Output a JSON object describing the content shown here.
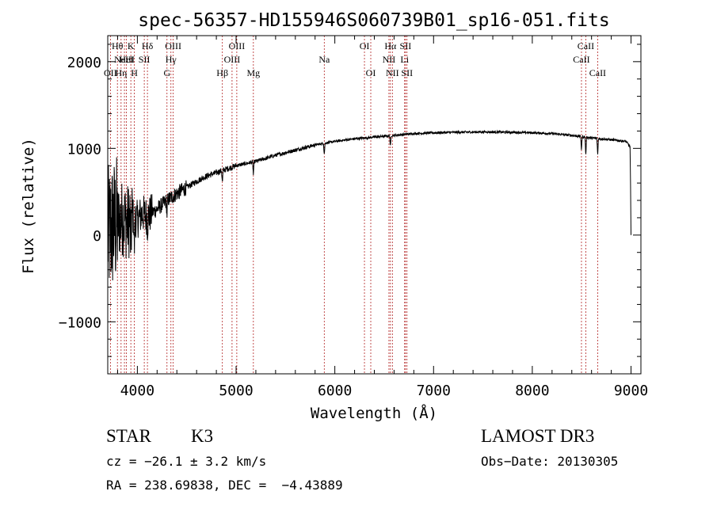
{
  "chart_data": {
    "type": "line",
    "title": "spec-56357-HD155946S060739B01_sp16-051.fits",
    "xlabel": "Wavelength (Å)",
    "ylabel": "Flux (relative)",
    "xlim": [
      3700,
      9100
    ],
    "ylim": [
      -1600,
      2300
    ],
    "xticks": [
      4000,
      5000,
      6000,
      7000,
      8000,
      9000
    ],
    "yticks": [
      -1000,
      0,
      1000,
      2000
    ],
    "grid": false,
    "spectrum_anchors": {
      "x": [
        3700,
        3750,
        3800,
        3850,
        3900,
        3950,
        4000,
        4050,
        4100,
        4200,
        4300,
        4400,
        4500,
        4600,
        4700,
        4800,
        4900,
        5000,
        5200,
        5400,
        5600,
        5800,
        6000,
        6200,
        6400,
        6600,
        6800,
        7000,
        7200,
        7500,
        7800,
        8000,
        8200,
        8400,
        8600,
        8800,
        8950,
        9000
      ],
      "y": [
        0,
        100,
        150,
        200,
        150,
        220,
        180,
        250,
        220,
        300,
        400,
        480,
        550,
        620,
        680,
        720,
        760,
        800,
        850,
        920,
        980,
        1040,
        1080,
        1110,
        1130,
        1150,
        1170,
        1180,
        1185,
        1190,
        1185,
        1180,
        1170,
        1150,
        1120,
        1100,
        1080,
        1000
      ]
    },
    "absorption_features": [
      {
        "x": 3934,
        "depth": 400
      },
      {
        "x": 3969,
        "depth": 380
      },
      {
        "x": 4102,
        "depth": 120
      },
      {
        "x": 4300,
        "depth": 160
      },
      {
        "x": 4861,
        "depth": 150
      },
      {
        "x": 5175,
        "depth": 150
      },
      {
        "x": 5893,
        "depth": 130
      },
      {
        "x": 6563,
        "depth": 130
      },
      {
        "x": 8498,
        "depth": 160
      },
      {
        "x": 8542,
        "depth": 220
      },
      {
        "x": 8662,
        "depth": 200
      }
    ],
    "line_markers": [
      {
        "x": 3727,
        "label": "OII",
        "row": 2
      },
      {
        "x": 3798,
        "label": "Hθ",
        "row": 0
      },
      {
        "x": 3835,
        "label": "Hη",
        "row": 2
      },
      {
        "x": 3869,
        "label": "NeIII",
        "row": 1
      },
      {
        "x": 3889,
        "label": "HeI",
        "row": 1
      },
      {
        "x": 3934,
        "label": "K",
        "row": 0
      },
      {
        "x": 3969,
        "label": "H",
        "row": 2
      },
      {
        "x": 4070,
        "label": "SII",
        "row": 1
      },
      {
        "x": 4102,
        "label": "Hδ",
        "row": 0
      },
      {
        "x": 4300,
        "label": "G",
        "row": 2
      },
      {
        "x": 4340,
        "label": "Hγ",
        "row": 1
      },
      {
        "x": 4363,
        "label": "OIII",
        "row": 0
      },
      {
        "x": 4861,
        "label": "Hβ",
        "row": 2
      },
      {
        "x": 4959,
        "label": "OIII",
        "row": 1
      },
      {
        "x": 5007,
        "label": "OIII",
        "row": 0
      },
      {
        "x": 5175,
        "label": "Mg",
        "row": 2
      },
      {
        "x": 5893,
        "label": "Na",
        "row": 1
      },
      {
        "x": 6300,
        "label": "OI",
        "row": 0
      },
      {
        "x": 6364,
        "label": "OI",
        "row": 2
      },
      {
        "x": 6548,
        "label": "NII",
        "row": 1
      },
      {
        "x": 6563,
        "label": "Hα",
        "row": 0
      },
      {
        "x": 6583,
        "label": "NII",
        "row": 2
      },
      {
        "x": 6707,
        "label": "Li",
        "row": 1
      },
      {
        "x": 6716,
        "label": "SII",
        "row": 0
      },
      {
        "x": 6731,
        "label": "SII",
        "row": 2
      },
      {
        "x": 8498,
        "label": "CaII",
        "row": 1
      },
      {
        "x": 8542,
        "label": "CaII",
        "row": 0
      },
      {
        "x": 8662,
        "label": "CaII",
        "row": 2
      }
    ]
  },
  "info": {
    "object_class": "STAR",
    "subclass": "K3",
    "survey": "LAMOST DR3",
    "redshift": "cz = −26.1 ± 3.2 km/s",
    "obs_date": "Obs−Date: 20130305",
    "coords": "RA = 238.69838, DEC =  −4.43889"
  },
  "colors": {
    "line": "#000000",
    "marker": "#b22222",
    "text": "#000000"
  }
}
